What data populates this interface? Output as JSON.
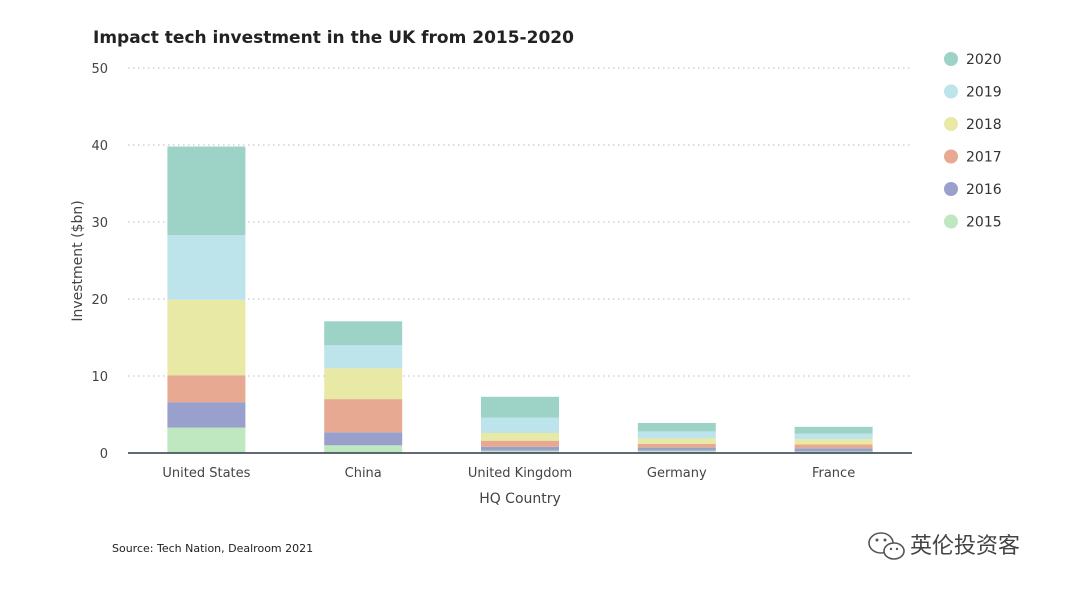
{
  "chart_data": {
    "type": "bar",
    "stacked": true,
    "title": "Impact tech investment in the UK from 2015-2020",
    "xlabel": "HQ Country",
    "ylabel": "Investment ($bn)",
    "ylim": [
      0,
      50
    ],
    "yticks": [
      "0",
      "10",
      "20",
      "30",
      "40",
      "50"
    ],
    "categories": [
      "United States",
      "China",
      "United Kingdom",
      "Germany",
      "France"
    ],
    "series": [
      {
        "name": "2015",
        "color": "#bfe8c0",
        "values": [
          3.3,
          1.0,
          0.3,
          0.3,
          0.2
        ]
      },
      {
        "name": "2016",
        "color": "#9aa0cc",
        "values": [
          3.3,
          1.7,
          0.5,
          0.4,
          0.4
        ]
      },
      {
        "name": "2017",
        "color": "#e8a992",
        "values": [
          3.5,
          4.3,
          0.8,
          0.5,
          0.5
        ]
      },
      {
        "name": "2018",
        "color": "#e8e9a5",
        "values": [
          9.8,
          4.0,
          1.0,
          0.7,
          0.7
        ]
      },
      {
        "name": "2019",
        "color": "#bde3eb",
        "values": [
          8.4,
          3.0,
          2.0,
          0.9,
          0.7
        ]
      },
      {
        "name": "2020",
        "color": "#9dd3c6",
        "values": [
          11.5,
          3.1,
          2.7,
          1.1,
          0.9
        ]
      }
    ],
    "legend_order": [
      "2020",
      "2019",
      "2018",
      "2017",
      "2016",
      "2015"
    ],
    "legend_position": "right",
    "grid": true
  },
  "source": "Source: Tech Nation, Dealroom 2021",
  "watermark": "英伦投资客"
}
